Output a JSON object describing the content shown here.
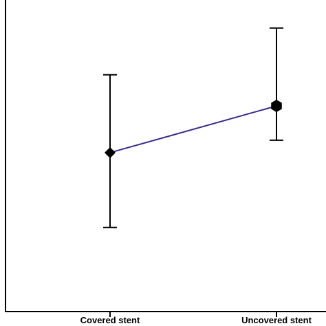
{
  "chart_data": {
    "type": "line",
    "categories": [
      "Covered stent",
      "Uncovered stent"
    ],
    "series": [
      {
        "values": [
          0.51,
          0.66
        ],
        "error_low": [
          0.27,
          0.55
        ],
        "error_high": [
          0.76,
          0.91
        ],
        "markers": [
          "diamond",
          "hexagon"
        ]
      }
    ],
    "title": "",
    "xlabel": "",
    "ylabel": "",
    "ylim": [
      0,
      1
    ],
    "grid": false,
    "legend": "none"
  },
  "colors": {
    "line": "#3b2a8c",
    "axis": "#000000",
    "marker": "#000000"
  }
}
